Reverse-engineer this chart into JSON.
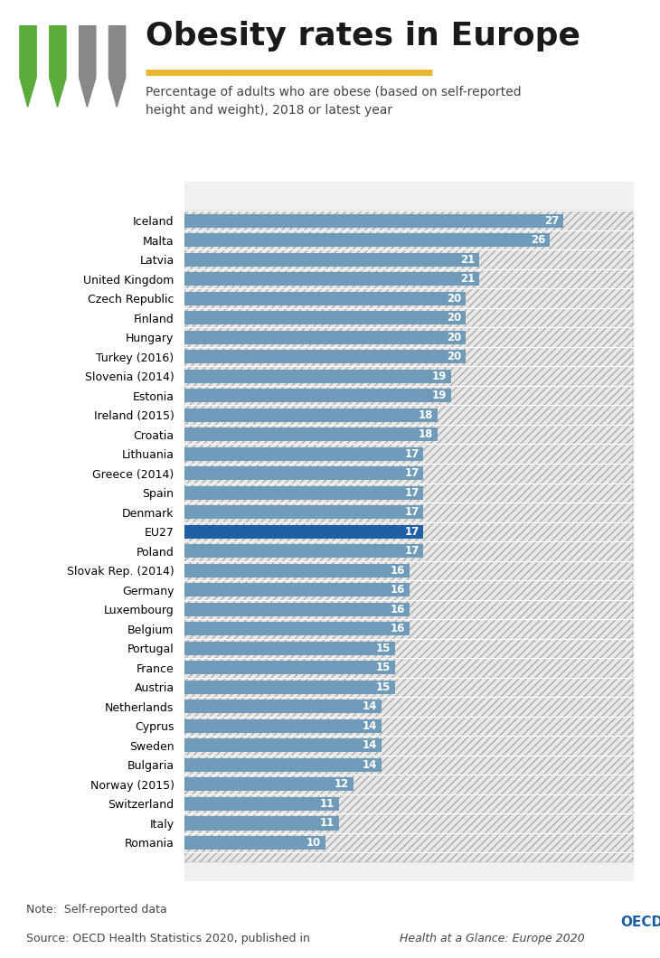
{
  "title": "Obesity rates in Europe",
  "subtitle": "Percentage of adults who are obese (based on self-reported\nheight and weight), 2018 or latest year",
  "note": "Note:  Self-reported data",
  "source": "Source: OECD Health Statistics 2020, published in ",
  "source_italic": "Health at a Glance: Europe 2020",
  "countries": [
    "Iceland",
    "Malta",
    "Latvia",
    "United Kingdom",
    "Czech Republic",
    "Finland",
    "Hungary",
    "Turkey (2016)",
    "Slovenia (2014)",
    "Estonia",
    "Ireland (2015)",
    "Croatia",
    "Lithuania",
    "Greece (2014)",
    "Spain",
    "Denmark",
    "EU27",
    "Poland",
    "Slovak Rep. (2014)",
    "Germany",
    "Luxembourg",
    "Belgium",
    "Portugal",
    "France",
    "Austria",
    "Netherlands",
    "Cyprus",
    "Sweden",
    "Bulgaria",
    "Norway (2015)",
    "Switzerland",
    "Italy",
    "Romania"
  ],
  "values": [
    27,
    26,
    21,
    21,
    20,
    20,
    20,
    20,
    19,
    19,
    18,
    18,
    17,
    17,
    17,
    17,
    17,
    17,
    16,
    16,
    16,
    16,
    15,
    15,
    15,
    14,
    14,
    14,
    14,
    12,
    11,
    11,
    10
  ],
  "bar_color": "#6f9ab8",
  "eu27_color": "#1f5fa6",
  "label_color": "#ffffff",
  "background_color": "#ffffff",
  "grid_color": "#cccccc",
  "title_color": "#1a1a1a",
  "subtitle_color": "#444444",
  "note_color": "#444444",
  "title_underline_color": "#e8b930",
  "xlim": [
    0,
    32
  ]
}
